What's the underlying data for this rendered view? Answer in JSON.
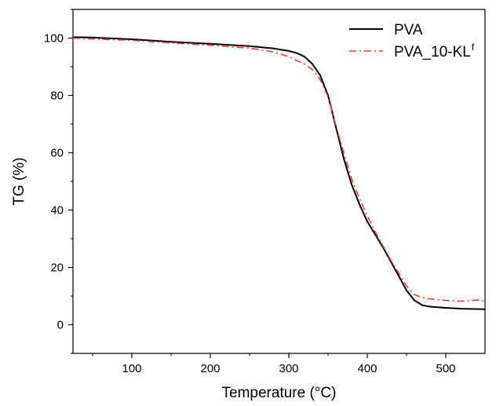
{
  "chart_data": {
    "type": "line",
    "title": "",
    "xlabel": "Temperature (°C)",
    "ylabel": "TG (%)",
    "xlim": [
      25,
      550
    ],
    "ylim": [
      -10,
      110
    ],
    "x_ticks": [
      100,
      200,
      300,
      400,
      500
    ],
    "y_ticks": [
      0,
      20,
      40,
      60,
      80,
      100
    ],
    "grid": false,
    "legend_position": "top-right",
    "series": [
      {
        "name": "PVA",
        "name_sup": "",
        "color": "#000000",
        "line_style": "solid",
        "x": [
          25,
          50,
          100,
          150,
          200,
          250,
          280,
          300,
          310,
          320,
          330,
          340,
          350,
          360,
          370,
          380,
          390,
          400,
          410,
          420,
          430,
          440,
          450,
          460,
          470,
          480,
          500,
          520,
          550
        ],
        "y": [
          100.3,
          100.2,
          99.6,
          98.7,
          98,
          97.2,
          96.4,
          95.5,
          94.8,
          93.5,
          91,
          87,
          80,
          69,
          58,
          49,
          42,
          36,
          31.5,
          27,
          22,
          17,
          12,
          8.5,
          6.8,
          6.3,
          5.9,
          5.6,
          5.4
        ]
      },
      {
        "name": "PVA_10-KL",
        "name_sup": "f",
        "color": "#e8413c",
        "line_style": "dash-dot",
        "x": [
          25,
          50,
          100,
          150,
          200,
          250,
          280,
          300,
          310,
          320,
          330,
          340,
          350,
          360,
          370,
          380,
          390,
          400,
          410,
          420,
          430,
          440,
          450,
          460,
          470,
          480,
          500,
          520,
          540,
          550
        ],
        "y": [
          100,
          99.7,
          99.2,
          98.3,
          97.5,
          96.5,
          95.2,
          93.5,
          92.2,
          91,
          89,
          85.5,
          79.5,
          69.5,
          60,
          51,
          44,
          38,
          32.5,
          27.5,
          22.5,
          18,
          13.5,
          10.5,
          9.5,
          9,
          8.5,
          8.2,
          8.6,
          8.2
        ]
      }
    ]
  }
}
